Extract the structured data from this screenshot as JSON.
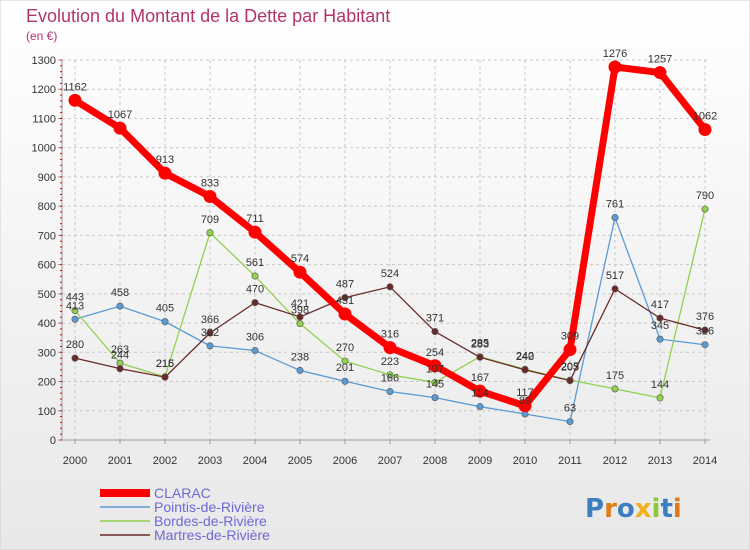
{
  "chart_data": {
    "type": "line",
    "title": "Evolution du Montant de la Dette par Habitant",
    "subtitle": "(en €)",
    "x": [
      "2000",
      "2001",
      "2002",
      "2003",
      "2004",
      "2005",
      "2006",
      "2007",
      "2008",
      "2009",
      "2010",
      "2011",
      "2012",
      "2013",
      "2014"
    ],
    "ylim": [
      0,
      1300
    ],
    "yticks": [
      0,
      100,
      200,
      300,
      400,
      500,
      600,
      700,
      800,
      900,
      1000,
      1100,
      1200,
      1300
    ],
    "grid": true,
    "legend_position": "bottom-left",
    "series": [
      {
        "name": "CLARAC",
        "color": "#ff0000",
        "values": [
          1162,
          1067,
          913,
          833,
          711,
          574,
          431,
          316,
          254,
          167,
          117,
          309,
          1276,
          1257,
          1062
        ]
      },
      {
        "name": "Pointis-de-Rivière",
        "color": "#5b9bd5",
        "values": [
          413,
          458,
          405,
          322,
          306,
          238,
          201,
          166,
          145,
          114,
          89,
          63,
          761,
          345,
          326
        ]
      },
      {
        "name": "Bordes-de-Rivière",
        "color": "#92d050",
        "values": [
          443,
          263,
          216,
          709,
          561,
          398,
          270,
          223,
          197,
          285,
          242,
          205,
          175,
          144,
          790
        ]
      },
      {
        "name": "Martres-de-Rivière",
        "color": "#6b2a2a",
        "values": [
          280,
          244,
          215,
          366,
          470,
          421,
          487,
          524,
          371,
          283,
          240,
          203,
          517,
          417,
          376
        ]
      }
    ]
  },
  "branding": {
    "logo_text": "Proxiti"
  }
}
